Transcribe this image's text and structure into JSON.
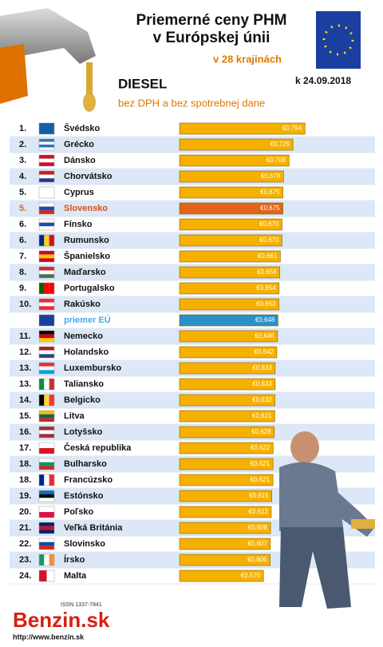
{
  "header": {
    "title_line1": "Priemerné ceny PHM",
    "title_line2": "v Európskej únii",
    "subtitle": "v 28 krajinách",
    "fuel": "DIESEL",
    "note": "bez DPH a bez spotrebnej dane",
    "date": "k 24.09.2018"
  },
  "chart_data": {
    "type": "bar",
    "ranks": [
      "1.",
      "2.",
      "3.",
      "4.",
      "5.",
      "5.",
      "6.",
      "6.",
      "7.",
      "8.",
      "9.",
      "10.",
      null,
      "11.",
      "12.",
      "13.",
      "13.",
      "14.",
      "15.",
      "16.",
      "17.",
      "18.",
      "18.",
      "19.",
      "20.",
      "21.",
      "22.",
      "23.",
      "24."
    ],
    "categories": [
      "Švédsko",
      "Grécko",
      "Dánsko",
      "Chorvátsko",
      "Cyprus",
      "Slovensko",
      "Fínsko",
      "Rumunsko",
      "Španielsko",
      "Maďarsko",
      "Portugalsko",
      "Rakúsko",
      "priemer EÚ",
      "Nemecko",
      "Holandsko",
      "Luxembursko",
      "Taliansko",
      "Belgicko",
      "Litva",
      "Lotyšsko",
      "Česká republika",
      "Bulharsko",
      "Francúzsko",
      "Estónsko",
      "Poľsko",
      "Veľká Británia",
      "Slovinsko",
      "Írsko",
      "Malta"
    ],
    "values": [
      0.794,
      0.729,
      0.708,
      0.678,
      0.675,
      0.675,
      0.67,
      0.67,
      0.661,
      0.658,
      0.654,
      0.653,
      0.648,
      0.646,
      0.642,
      0.633,
      0.633,
      0.632,
      0.631,
      0.628,
      0.622,
      0.621,
      0.621,
      0.615,
      0.612,
      0.608,
      0.607,
      0.606,
      0.57
    ],
    "value_labels": [
      "€0,794",
      "€0,729",
      "€0,708",
      "€0,678",
      "€0,675",
      "€0,675",
      "€0,670",
      "€0,670",
      "€0,661",
      "€0,658",
      "€0,654",
      "€0,653",
      "€0,648",
      "€0,646",
      "€0,642",
      "€0,633",
      "€0,633",
      "€0,632",
      "€0,631",
      "€0,628",
      "€0,622",
      "€0,621",
      "€0,621",
      "€0,615",
      "€0,612",
      "€0,608",
      "€0,607",
      "€0,606",
      "€0,570"
    ],
    "color": "#f5b000",
    "highlight_colors": [
      null,
      null,
      null,
      null,
      null,
      "#e0641a",
      null,
      null,
      null,
      null,
      null,
      null,
      "#2a90c8",
      null,
      null,
      null,
      null,
      null,
      null,
      null,
      null,
      null,
      null,
      null,
      null,
      null,
      null,
      null,
      null
    ]
  },
  "footer": {
    "issn": "ISSN 1337-7841",
    "brand": "Benzin.sk",
    "url": "http://www.benzin.sk"
  }
}
